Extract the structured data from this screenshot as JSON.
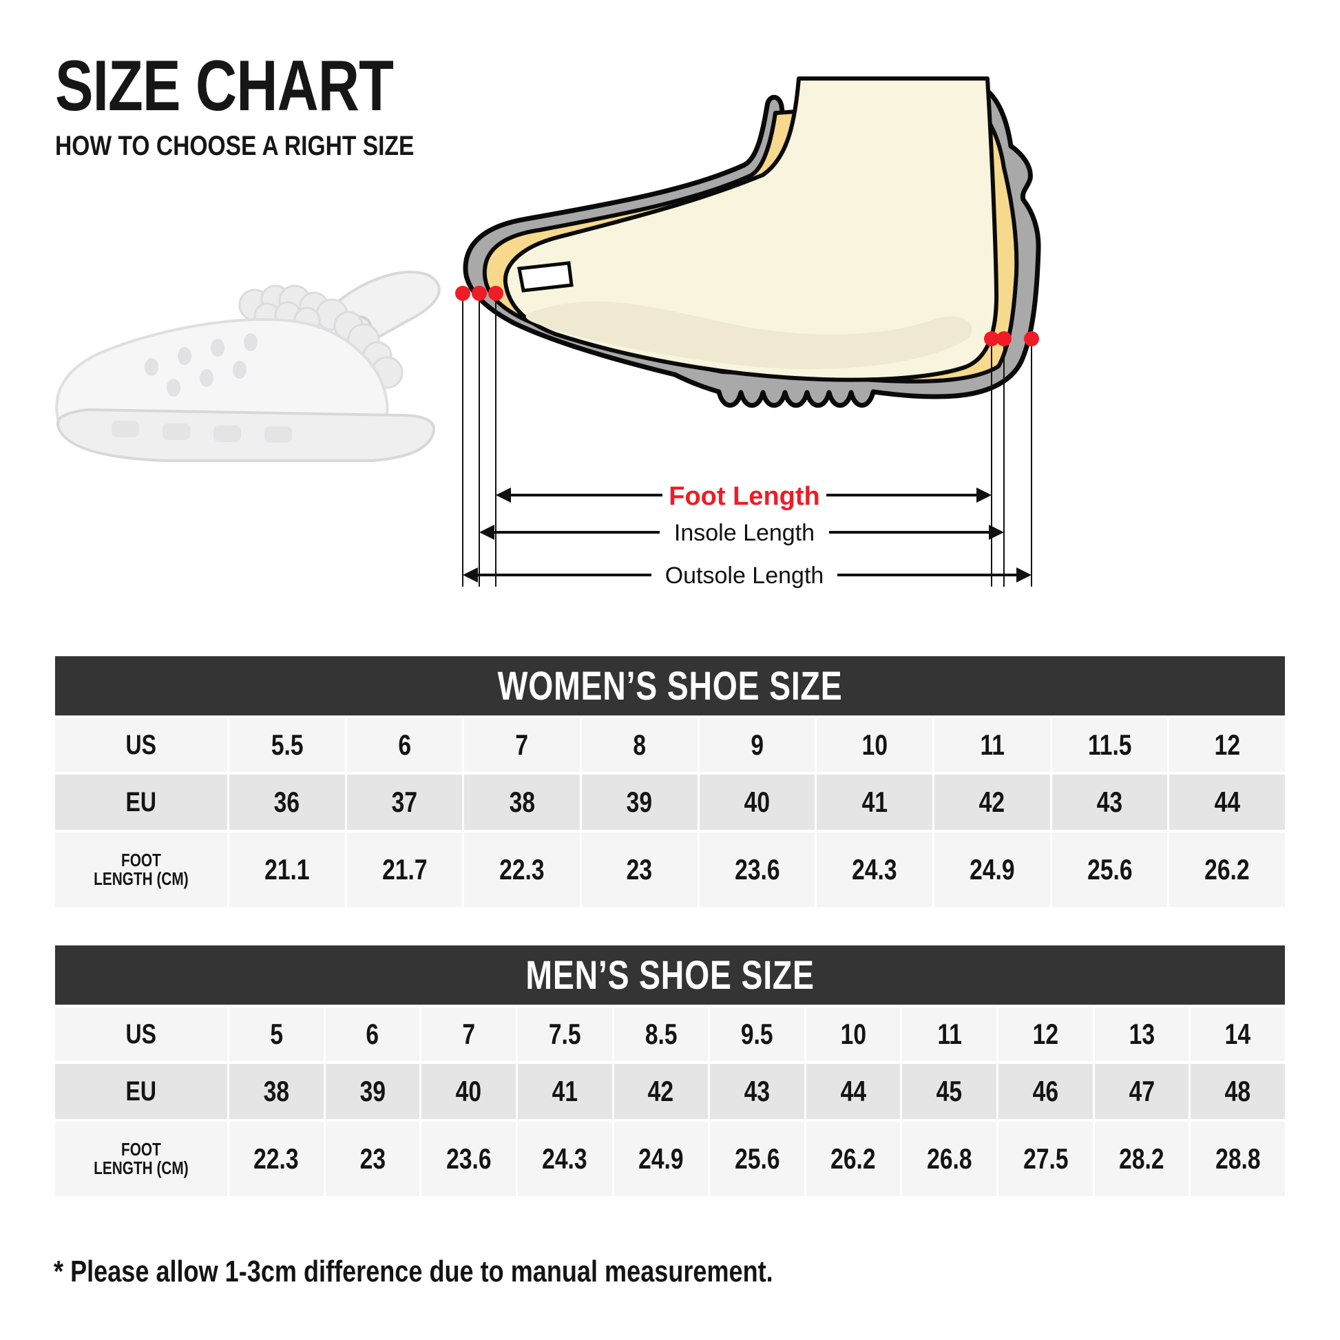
{
  "header": {
    "title": "SIZE CHART",
    "subtitle": "HOW TO CHOOSE A RIGHT SIZE"
  },
  "diagram": {
    "foot_length_label": "Foot Length",
    "insole_length_label": "Insole Length",
    "outsole_length_label": "Outsole Length",
    "colors": {
      "accent_red": "#ee1c25",
      "shoe_gray": "#a9a9a9",
      "lining_yellow": "#f6d98d",
      "foot_cream": "#f9f4de",
      "outline_black": "#0a0a0a"
    }
  },
  "tables": [
    {
      "title": "WOMEN’S SHOE SIZE",
      "rows": [
        {
          "label": "US",
          "values": [
            "5.5",
            "6",
            "7",
            "8",
            "9",
            "10",
            "11",
            "11.5",
            "12"
          ]
        },
        {
          "label": "EU",
          "values": [
            "36",
            "37",
            "38",
            "39",
            "40",
            "41",
            "42",
            "43",
            "44"
          ]
        },
        {
          "label": "FOOT\nLENGTH (CM)",
          "values": [
            "21.1",
            "21.7",
            "22.3",
            "23",
            "23.6",
            "24.3",
            "24.9",
            "25.6",
            "26.2"
          ]
        }
      ]
    },
    {
      "title": "MEN’S SHOE SIZE",
      "rows": [
        {
          "label": "US",
          "values": [
            "5",
            "6",
            "7",
            "7.5",
            "8.5",
            "9.5",
            "10",
            "11",
            "12",
            "13",
            "14"
          ]
        },
        {
          "label": "EU",
          "values": [
            "38",
            "39",
            "40",
            "41",
            "42",
            "43",
            "44",
            "45",
            "46",
            "47",
            "48"
          ]
        },
        {
          "label": "FOOT\nLENGTH (CM)",
          "values": [
            "22.3",
            "23",
            "23.6",
            "24.3",
            "24.9",
            "25.6",
            "26.2",
            "26.8",
            "27.5",
            "28.2",
            "28.8"
          ]
        }
      ]
    }
  ],
  "footnote": "* Please allow 1-3cm difference due to manual measurement."
}
